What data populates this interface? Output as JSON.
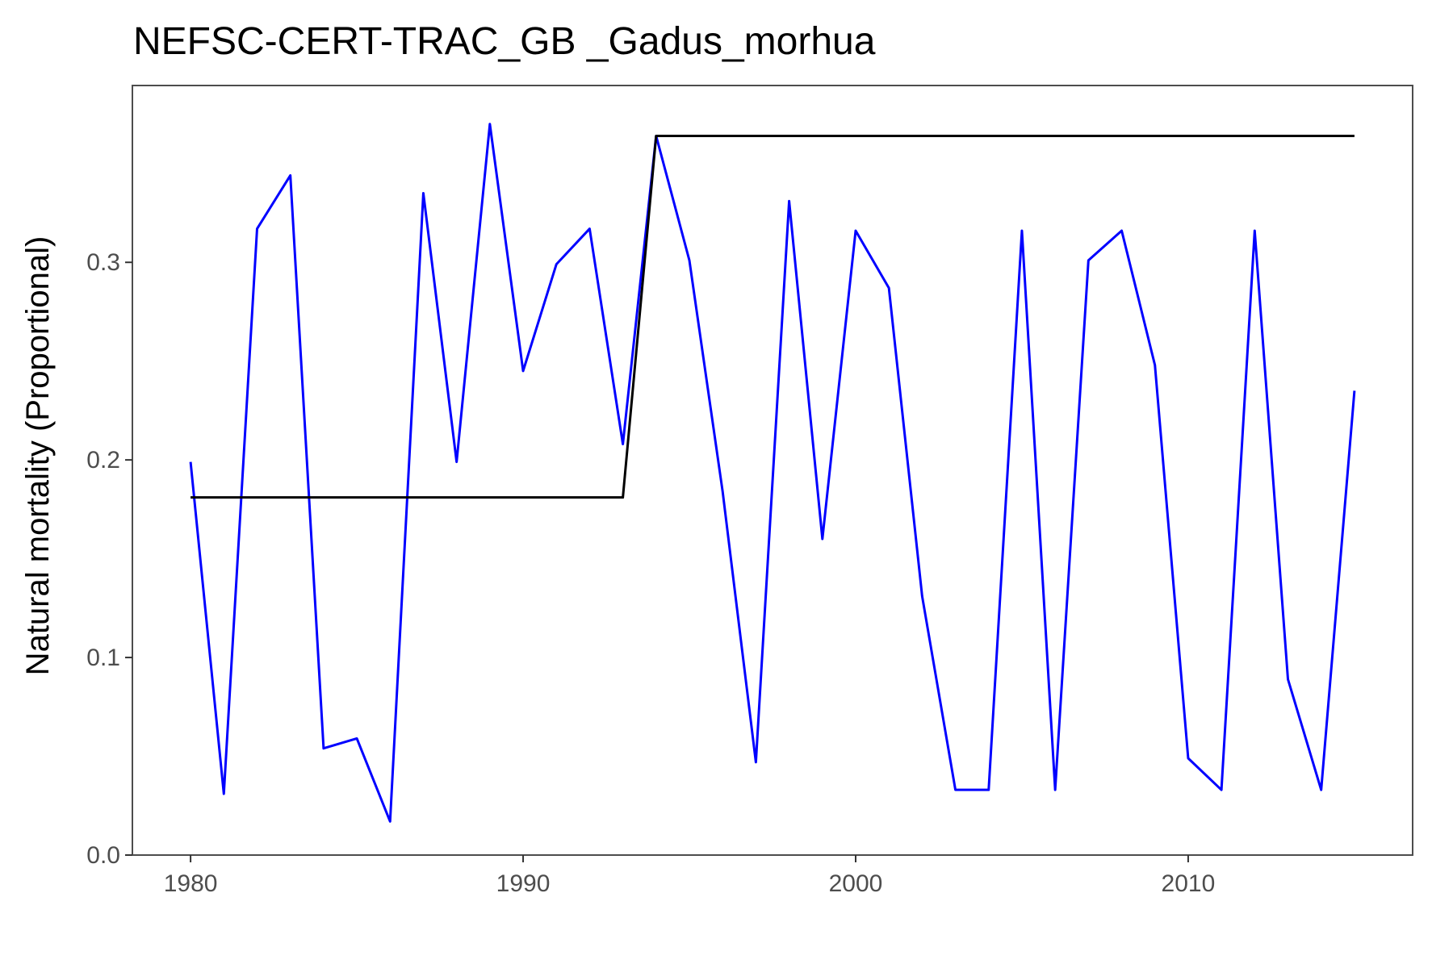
{
  "chart_data": {
    "type": "line",
    "title": "NEFSC-CERT-TRAC_GB _Gadus_morhua",
    "xlabel": "",
    "ylabel": "Natural mortality (Proportional)",
    "xlim": [
      1978.25,
      2016.75
    ],
    "ylim": [
      0,
      0.3895
    ],
    "x_ticks": [
      1980,
      1990,
      2000,
      2010
    ],
    "x_tick_labels": [
      "1980",
      "1990",
      "2000",
      "2010"
    ],
    "y_ticks": [
      0.0,
      0.1,
      0.2,
      0.3
    ],
    "y_tick_labels": [
      "0.0",
      "0.1",
      "0.2",
      "0.3"
    ],
    "grid": false,
    "legend": "none",
    "series": [
      {
        "color": "#0000ff",
        "points": [
          [
            1980,
            0.199
          ],
          [
            1981,
            0.031
          ],
          [
            1982,
            0.317
          ],
          [
            1983,
            0.344
          ],
          [
            1984,
            0.054
          ],
          [
            1985,
            0.059
          ],
          [
            1986,
            0.017
          ],
          [
            1987,
            0.335
          ],
          [
            1988,
            0.199
          ],
          [
            1989,
            0.37
          ],
          [
            1990,
            0.245
          ],
          [
            1991,
            0.299
          ],
          [
            1992,
            0.317
          ],
          [
            1993,
            0.208
          ],
          [
            1994,
            0.364
          ],
          [
            1995,
            0.301
          ],
          [
            1996,
            0.184
          ],
          [
            1997,
            0.047
          ],
          [
            1998,
            0.331
          ],
          [
            1999,
            0.16
          ],
          [
            2000,
            0.316
          ],
          [
            2001,
            0.287
          ],
          [
            2002,
            0.131
          ],
          [
            2003,
            0.033
          ],
          [
            2004,
            0.033
          ],
          [
            2005,
            0.316
          ],
          [
            2006,
            0.033
          ],
          [
            2007,
            0.301
          ],
          [
            2008,
            0.316
          ],
          [
            2009,
            0.248
          ],
          [
            2010,
            0.049
          ],
          [
            2011,
            0.033
          ],
          [
            2012,
            0.316
          ],
          [
            2013,
            0.089
          ],
          [
            2014,
            0.033
          ],
          [
            2015,
            0.235
          ]
        ]
      },
      {
        "color": "#000000",
        "points": [
          [
            1980,
            0.181
          ],
          [
            1993,
            0.181
          ],
          [
            1994,
            0.364
          ],
          [
            2015,
            0.364
          ]
        ]
      }
    ]
  }
}
